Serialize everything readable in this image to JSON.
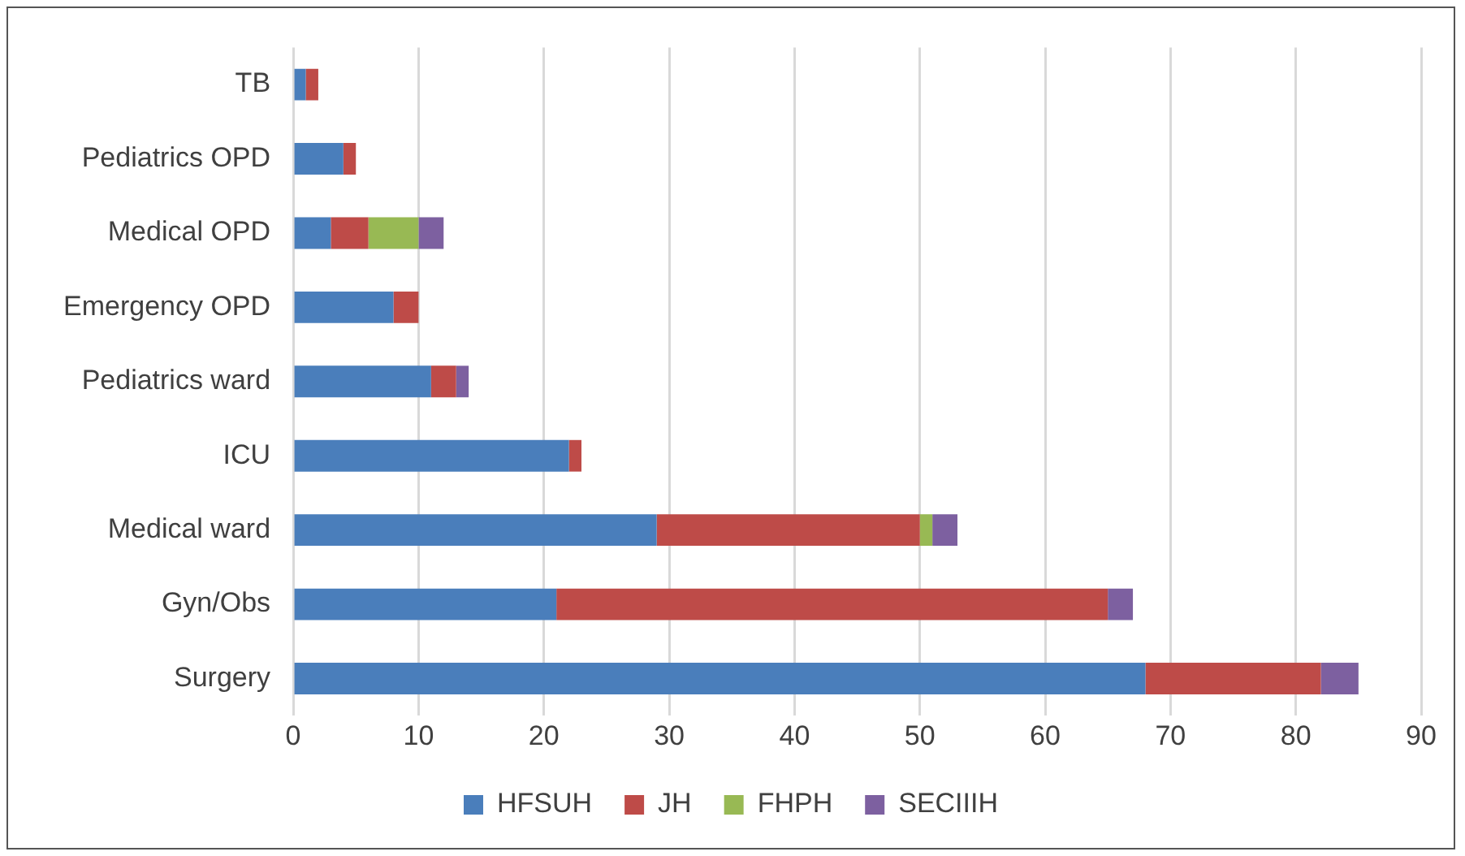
{
  "chart_data": {
    "type": "bar",
    "orientation": "horizontal",
    "stacked": true,
    "categories": [
      "TB",
      "Pediatrics OPD",
      "Medical OPD",
      "Emergency OPD",
      "Pediatrics ward",
      "ICU",
      "Medical ward",
      "Gyn/Obs",
      "Surgery"
    ],
    "series": [
      {
        "name": "HFSUH",
        "color": "#4a7ebb",
        "values": [
          1,
          4,
          3,
          8,
          11,
          22,
          29,
          21,
          68
        ]
      },
      {
        "name": "JH",
        "color": "#be4b48",
        "values": [
          1,
          1,
          3,
          2,
          2,
          1,
          21,
          44,
          14
        ]
      },
      {
        "name": "FHPH",
        "color": "#98b954",
        "values": [
          null,
          null,
          4,
          null,
          null,
          null,
          1,
          null,
          null
        ]
      },
      {
        "name": "SECIIIH",
        "color": "#7d60a0",
        "values": [
          null,
          null,
          2,
          null,
          1,
          null,
          2,
          2,
          3
        ]
      }
    ],
    "xlim": [
      0,
      90
    ],
    "xticks": [
      0,
      10,
      20,
      30,
      40,
      50,
      60,
      70,
      80,
      90
    ],
    "grid": "x",
    "legend": "bottom"
  }
}
